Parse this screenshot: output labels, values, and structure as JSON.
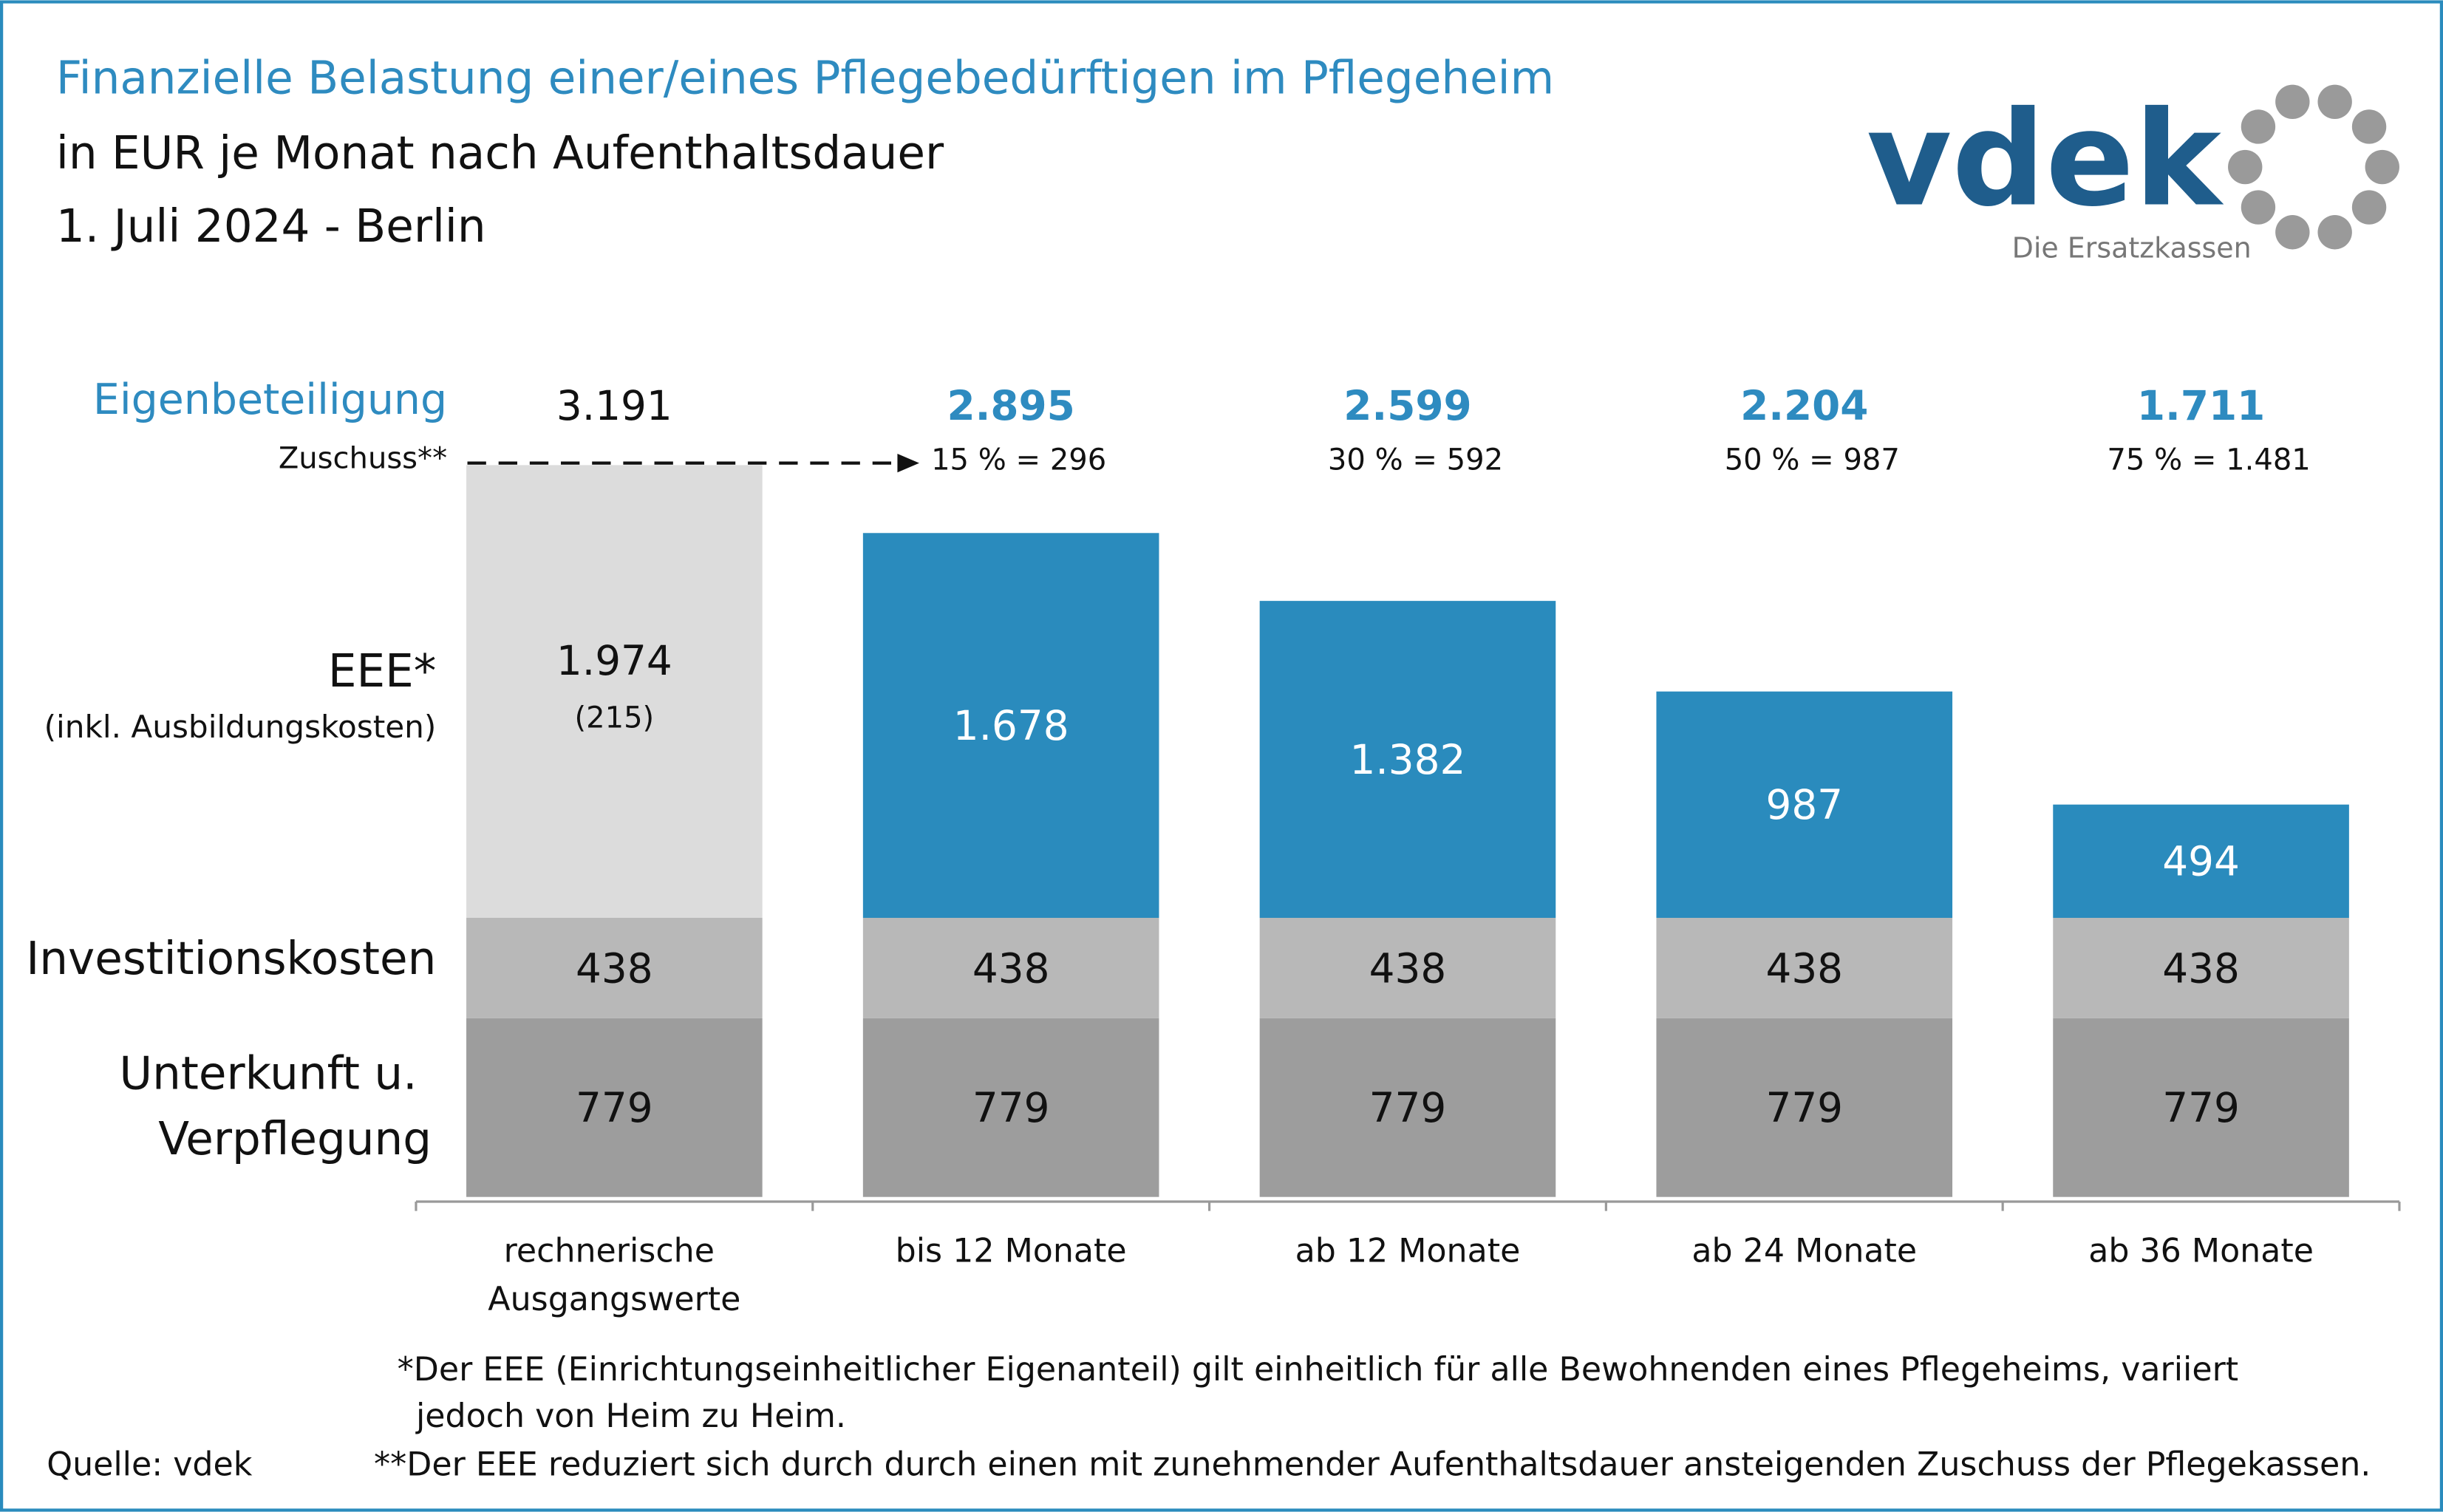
{
  "chart_data": {
    "type": "stacked_bar",
    "title": "Finanzielle Belastung einer/eines Pflegebedürftigen im Pflegeheim",
    "subtitle": "in EUR je Monat nach Aufenthaltsdauer",
    "date": "1. Juli 2024 - Berlin",
    "categories": [
      "rechnerische Ausgangswerte",
      "bis 12 Monate",
      "ab 12 Monate",
      "ab 24 Monate",
      "ab 36 Monate"
    ],
    "series": [
      {
        "name": "Unterkunft u. Verpflegung",
        "color": "#9d9d9d",
        "values": [
          779,
          779,
          779,
          779,
          779
        ]
      },
      {
        "name": "Investitionskosten",
        "color": "#b8b8b8",
        "values": [
          438,
          438,
          438,
          438,
          438
        ]
      },
      {
        "name": "EEE*",
        "note": "(inkl. Ausbildungskosten)",
        "colors": [
          "#dcdcdc",
          "#2a8bbd",
          "#2a8bbd",
          "#2a8bbd",
          "#2a8bbd"
        ],
        "values": [
          1974,
          1678,
          1382,
          987,
          494
        ],
        "value_labels": [
          "1.974",
          "1.678",
          "1.382",
          "987",
          "494"
        ],
        "first_note": "(215)"
      }
    ],
    "totals": {
      "name": "Eigenbeteiligung",
      "values": [
        3191,
        2895,
        2599,
        2204,
        1711
      ],
      "value_labels": [
        "3.191",
        "2.895",
        "2.599",
        "2.204",
        "1.711"
      ]
    },
    "zuschuss": {
      "name": "Zuschuss**",
      "labels": [
        null,
        "15 % = 296",
        "30 % = 592",
        "50 % = 987",
        "75 % = 1.481"
      ]
    },
    "ylim": [
      0,
      3200
    ],
    "footnotes": [
      "*Der EEE (Einrichtungseinheitlicher Eigenanteil) gilt einheitlich für alle Bewohnenden eines Pflegeheims, variiert",
      "jedoch von Heim zu Heim.",
      "**Der EEE reduziert sich durch durch einen mit zunehmender Aufenthaltsdauer ansteigenden Zuschuss der Pflegekassen."
    ],
    "source": "Quelle: vdek",
    "logo": {
      "name": "vdek",
      "tagline": "Die Ersatzkassen"
    }
  }
}
